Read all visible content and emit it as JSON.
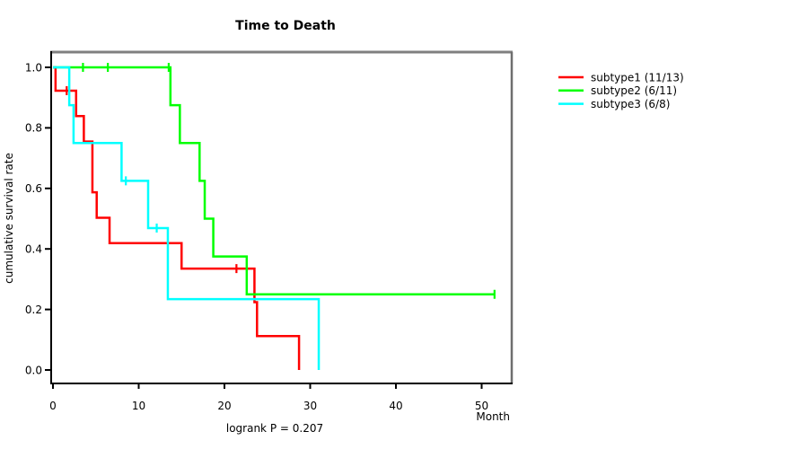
{
  "chart_data": {
    "type": "line",
    "subtype": "kaplan-meier-step",
    "title": "Time to Death",
    "xlabel": "Month",
    "ylabel": "cumulative survival rate",
    "annotation": "logrank P = 0.207",
    "xlim": [
      0,
      53.5
    ],
    "ylim": [
      0,
      1
    ],
    "grid": false,
    "legend_position": "right-outside",
    "x_ticks": [
      {
        "value": 0,
        "label": "0"
      },
      {
        "value": 10,
        "label": "10"
      },
      {
        "value": 20,
        "label": "20"
      },
      {
        "value": 30,
        "label": "30"
      },
      {
        "value": 40,
        "label": "40"
      },
      {
        "value": 50,
        "label": "50"
      }
    ],
    "y_ticks": [
      {
        "value": 0.0,
        "label": "0.0"
      },
      {
        "value": 0.2,
        "label": "0.2"
      },
      {
        "value": 0.4,
        "label": "0.4"
      },
      {
        "value": 0.6,
        "label": "0.6"
      },
      {
        "value": 0.8,
        "label": "0.8"
      },
      {
        "value": 1.0,
        "label": "1.0"
      }
    ],
    "series": [
      {
        "name": "subtype1 (11/13)",
        "slug": "subtype1",
        "color": "#ff0000",
        "steps": [
          [
            0,
            1.0
          ],
          [
            0.3,
            0.923
          ],
          [
            2.7,
            0.839
          ],
          [
            3.6,
            0.755
          ],
          [
            4.6,
            0.587
          ],
          [
            5.1,
            0.503
          ],
          [
            6.6,
            0.419
          ],
          [
            15.0,
            0.335
          ],
          [
            23.5,
            0.224
          ],
          [
            23.8,
            0.112
          ],
          [
            28.7,
            0.0
          ]
        ],
        "end_x": 28.7,
        "censor_marks": [
          [
            1.6,
            0.923
          ],
          [
            21.4,
            0.335
          ]
        ]
      },
      {
        "name": "subtype2 (6/11)",
        "slug": "subtype2",
        "color": "#00ff00",
        "steps": [
          [
            0,
            1.0
          ],
          [
            13.7,
            0.875
          ],
          [
            14.8,
            0.75
          ],
          [
            17.1,
            0.625
          ],
          [
            17.7,
            0.5
          ],
          [
            18.7,
            0.375
          ],
          [
            22.6,
            0.25
          ]
        ],
        "end_x": 51.5,
        "censor_marks": [
          [
            3.5,
            1.0
          ],
          [
            6.4,
            1.0
          ],
          [
            13.5,
            1.0
          ],
          [
            51.5,
            0.25
          ]
        ]
      },
      {
        "name": "subtype3 (6/8)",
        "slug": "subtype3",
        "color": "#00ffff",
        "steps": [
          [
            0,
            1.0
          ],
          [
            1.9,
            0.875
          ],
          [
            2.4,
            0.75
          ],
          [
            8.0,
            0.625
          ],
          [
            11.1,
            0.469
          ],
          [
            13.4,
            0.234
          ],
          [
            31.0,
            0.0
          ]
        ],
        "end_x": 31.0,
        "censor_marks": [
          [
            8.5,
            0.625
          ],
          [
            12.1,
            0.469
          ]
        ]
      }
    ]
  }
}
